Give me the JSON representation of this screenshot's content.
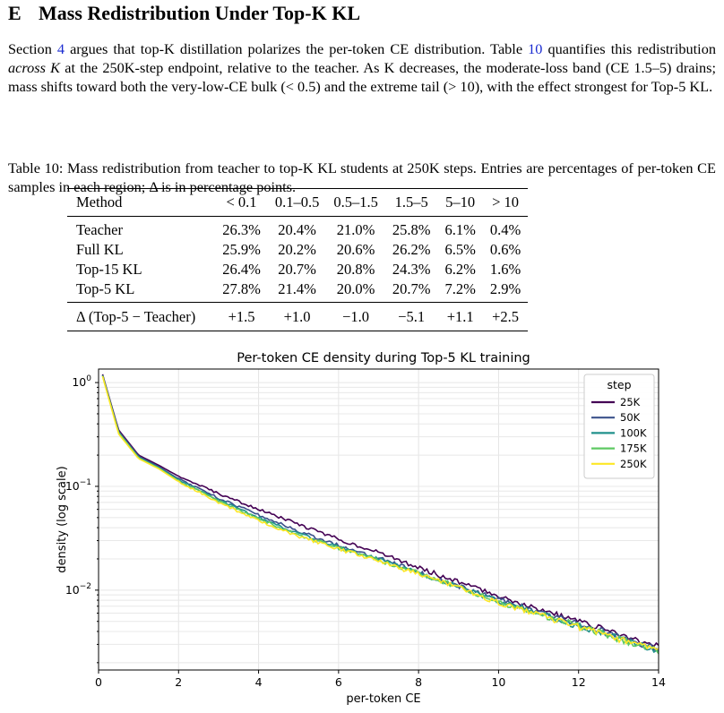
{
  "section": {
    "number": "E",
    "title": "Mass Redistribution Under Top-K KL"
  },
  "paragraph": {
    "p1": "Section ",
    "link1": "4",
    "p2": " argues that top-K distillation polarizes the per-token CE distribution. Table ",
    "link2": "10",
    "p3": " quantifies this redistribution ",
    "em": "across K",
    "p4": " at the 250K-step endpoint, relative to the teacher. As K decreases, the moderate-loss band (CE 1.5–5) drains; mass shifts toward both the very-low-CE bulk (< 0.5) and the extreme tail (> 10), with the effect strongest for Top-5 KL."
  },
  "caption": "Table 10: Mass redistribution from teacher to top-K KL students at 250K steps. Entries are percentages of per-token CE samples in each region; Δ is in percentage points.",
  "table": {
    "headers": [
      "Method",
      "< 0.1",
      "0.1–0.5",
      "0.5–1.5",
      "1.5–5",
      "5–10",
      "> 10"
    ],
    "rows": [
      [
        "Teacher",
        "26.3%",
        "20.4%",
        "21.0%",
        "25.8%",
        "6.1%",
        "0.4%"
      ],
      [
        "Full KL",
        "25.9%",
        "20.2%",
        "20.6%",
        "26.2%",
        "6.5%",
        "0.6%"
      ],
      [
        "Top-15 KL",
        "26.4%",
        "20.7%",
        "20.8%",
        "24.3%",
        "6.2%",
        "1.6%"
      ],
      [
        "Top-5 KL",
        "27.8%",
        "21.4%",
        "20.0%",
        "20.7%",
        "7.2%",
        "2.9%"
      ]
    ],
    "delta": [
      "Δ (Top-5 − Teacher)",
      "+1.5",
      "+1.0",
      "−1.0",
      "−5.1",
      "+1.1",
      "+2.5"
    ]
  },
  "chart_data": {
    "type": "line",
    "title": "Per-token CE density during Top-5 KL training",
    "xlabel": "per-token CE",
    "ylabel": "density (log scale)",
    "xlim": [
      0,
      14
    ],
    "ylim": [
      0.0017,
      1.35
    ],
    "yscale": "log",
    "grid": true,
    "xticks": [
      0,
      2,
      4,
      6,
      8,
      10,
      12,
      14
    ],
    "yticks": [
      {
        "value": 1,
        "base": "10",
        "exp": "0"
      },
      {
        "value": 0.1,
        "base": "10",
        "exp": "−1"
      },
      {
        "value": 0.01,
        "base": "10",
        "exp": "−2"
      }
    ],
    "legend": {
      "title": "step",
      "position": "top-right"
    },
    "series": [
      {
        "name": "25K",
        "color": "#440154",
        "x": [
          0.1,
          0.5,
          1,
          1.5,
          2,
          3,
          4,
          5,
          6,
          7,
          8,
          9,
          10,
          11,
          12,
          13,
          14
        ],
        "values": [
          1.2,
          0.35,
          0.2,
          0.16,
          0.125,
          0.085,
          0.06,
          0.043,
          0.031,
          0.023,
          0.0165,
          0.012,
          0.0088,
          0.0066,
          0.005,
          0.0038,
          0.0028
        ]
      },
      {
        "name": "50K",
        "color": "#3b528b",
        "x": [
          0.1,
          0.5,
          1,
          1.5,
          2,
          3,
          4,
          5,
          6,
          7,
          8,
          9,
          10,
          11,
          12,
          13,
          14
        ],
        "values": [
          1.18,
          0.34,
          0.195,
          0.155,
          0.118,
          0.077,
          0.053,
          0.037,
          0.027,
          0.0205,
          0.015,
          0.011,
          0.0081,
          0.0062,
          0.0047,
          0.0036,
          0.0027
        ]
      },
      {
        "name": "100K",
        "color": "#21918c",
        "x": [
          0.1,
          0.5,
          1,
          1.5,
          2,
          3,
          4,
          5,
          6,
          7,
          8,
          9,
          10,
          11,
          12,
          13,
          14
        ],
        "values": [
          1.17,
          0.33,
          0.19,
          0.152,
          0.115,
          0.074,
          0.05,
          0.035,
          0.026,
          0.0198,
          0.0147,
          0.0108,
          0.0078,
          0.006,
          0.0045,
          0.0035,
          0.0026
        ]
      },
      {
        "name": "175K",
        "color": "#5ec962",
        "x": [
          0.1,
          0.5,
          1,
          1.5,
          2,
          3,
          4,
          5,
          6,
          7,
          8,
          9,
          10,
          11,
          12,
          13,
          14
        ],
        "values": [
          1.16,
          0.33,
          0.188,
          0.15,
          0.113,
          0.072,
          0.049,
          0.034,
          0.0255,
          0.0195,
          0.0145,
          0.0107,
          0.0077,
          0.0059,
          0.0045,
          0.0034,
          0.0026
        ]
      },
      {
        "name": "250K",
        "color": "#fde725",
        "x": [
          0.1,
          0.5,
          1,
          1.5,
          2,
          3,
          4,
          5,
          6,
          7,
          8,
          9,
          10,
          11,
          12,
          13,
          14
        ],
        "values": [
          1.15,
          0.32,
          0.185,
          0.148,
          0.111,
          0.07,
          0.047,
          0.033,
          0.025,
          0.019,
          0.0142,
          0.0105,
          0.0076,
          0.0058,
          0.0044,
          0.0034,
          0.0026
        ]
      }
    ]
  }
}
